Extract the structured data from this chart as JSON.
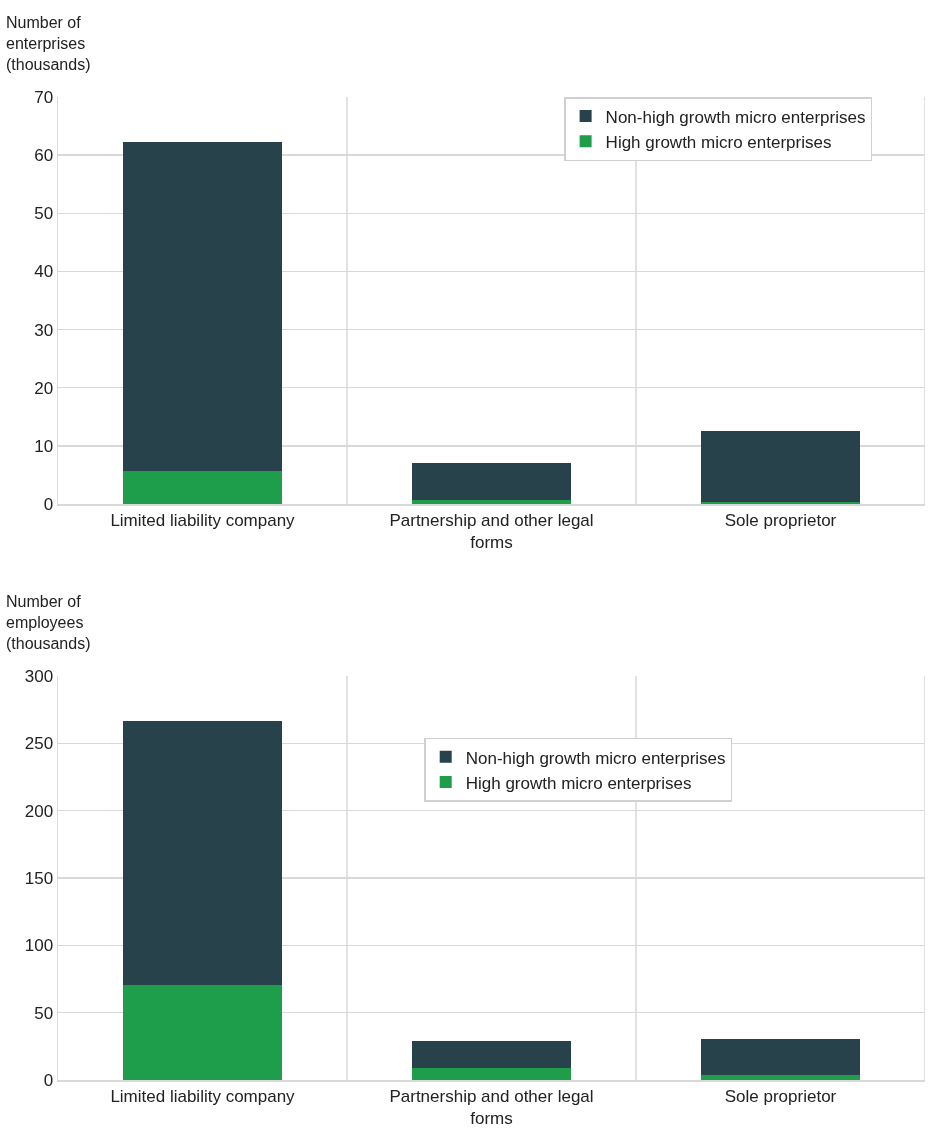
{
  "chart_data": [
    {
      "type": "bar",
      "ylabel": "Number of enterprises (thousands)",
      "categories": [
        "Limited liability company",
        "Partnership and other legal forms",
        "Sole proprietor"
      ],
      "stacked": true,
      "series": [
        {
          "name": "High growth micro enterprises",
          "color": "#1e9e4a",
          "values": [
            5.7,
            0.7,
            0.4
          ]
        },
        {
          "name": "Non-high growth micro enterprises",
          "color": "#27424a",
          "values": [
            56.6,
            6.3,
            12.2
          ]
        }
      ],
      "ylim": [
        0,
        70
      ],
      "yticks": [
        0,
        10,
        20,
        30,
        40,
        50,
        60,
        70
      ],
      "grid": true,
      "legend": "top right"
    },
    {
      "type": "bar",
      "ylabel": "Number of employees (thousands)",
      "categories": [
        "Limited liability company",
        "Partnership and other legal forms",
        "Sole proprietor"
      ],
      "stacked": true,
      "series": [
        {
          "name": "High growth micro enterprises",
          "color": "#1e9e4a",
          "values": [
            70.5,
            9,
            3.7
          ]
        },
        {
          "name": "Non-high growth micro enterprises",
          "color": "#27424a",
          "values": [
            196,
            20,
            26.7
          ]
        }
      ],
      "ylim": [
        0,
        300
      ],
      "yticks": [
        0,
        50,
        100,
        150,
        200,
        250,
        300
      ],
      "grid": true,
      "legend": "top"
    }
  ]
}
